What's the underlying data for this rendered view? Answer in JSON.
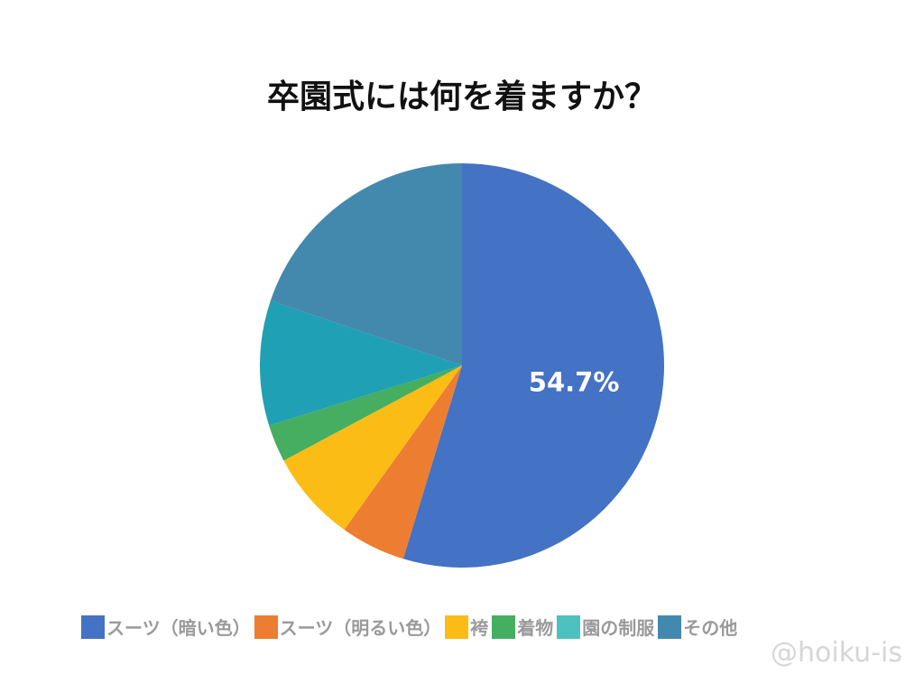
{
  "chart_data": {
    "type": "pie",
    "title": "卒園式には何を着ますか？",
    "slices": [
      {
        "label": "スーツ（暗い色）",
        "value": 54.7,
        "color": "#4472C4",
        "data_label": "54.7%"
      },
      {
        "label": "スーツ（明るい色）",
        "value": 5.2,
        "color": "#ED7D31"
      },
      {
        "label": "袴",
        "value": 7.3,
        "color": "#FBBC16"
      },
      {
        "label": "着物",
        "value": 3.0,
        "color": "#46AE60"
      },
      {
        "label": "園の制服",
        "value": 10.0,
        "color": "#20A0B4"
      },
      {
        "label": "その他",
        "value": 19.8,
        "color": "#4389AE"
      }
    ],
    "legend_position": "bottom"
  },
  "legend_colors": {
    "園の制服": "#4DC0C0"
  },
  "watermark": "@hoiku-is"
}
